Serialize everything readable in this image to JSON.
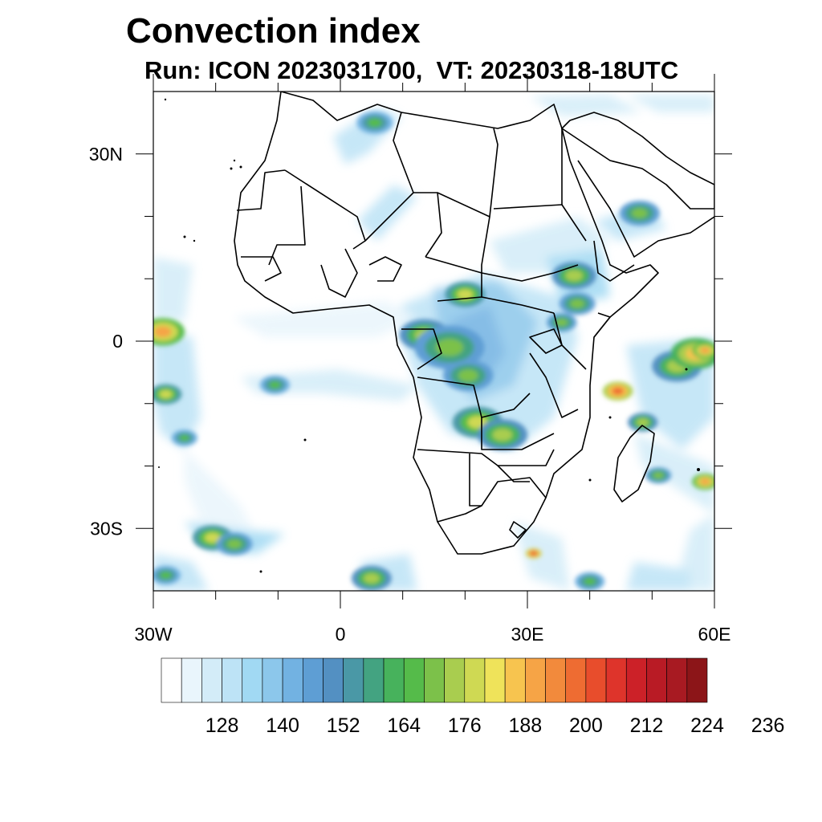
{
  "title": "Convection index",
  "subtitle": "Run: ICON 2023031700,  VT: 20230318-18UTC",
  "map": {
    "lon_range": [
      -30,
      60
    ],
    "lat_range": [
      -40,
      40
    ],
    "x_tick_labels": [
      {
        "lon": -30,
        "label": "30W"
      },
      {
        "lon": 0,
        "label": "0"
      },
      {
        "lon": 30,
        "label": "30E"
      },
      {
        "lon": 60,
        "label": "60E"
      }
    ],
    "y_tick_labels": [
      {
        "lat": 30,
        "label": "30N"
      },
      {
        "lat": 0,
        "label": "0"
      },
      {
        "lat": -30,
        "label": "30S"
      }
    ],
    "minor_lon_ticks": [
      -20,
      -10,
      10,
      20,
      40,
      50
    ],
    "minor_lat_ticks": [
      20,
      10,
      -10,
      -20
    ]
  },
  "colorbar": {
    "colors": [
      "#ffffff",
      "#e9f5fc",
      "#d3ecf8",
      "#bde3f6",
      "#a1d9f3",
      "#8cc7eb",
      "#72b2e2",
      "#5e9ed4",
      "#5390c2",
      "#4a98a6",
      "#43a381",
      "#47b25c",
      "#55bb4a",
      "#7cc14a",
      "#a9cd4f",
      "#cfd953",
      "#efe35a",
      "#f7c44f",
      "#f6a446",
      "#f28a3c",
      "#ee6c32",
      "#e84d2c",
      "#de342b",
      "#cc2128",
      "#b91b25",
      "#a81a22",
      "#8c1518"
    ],
    "labels": [
      "128",
      "140",
      "152",
      "164",
      "176",
      "188",
      "200",
      "212",
      "224",
      "236"
    ]
  },
  "convection_blobs": [
    {
      "lon": -28.5,
      "lat": 1.5,
      "r": 2.2,
      "level": 18
    },
    {
      "lon": -28.0,
      "lat": -8.5,
      "r": 1.6,
      "level": 15
    },
    {
      "lon": -20.5,
      "lat": -31.5,
      "r": 2.0,
      "level": 15
    },
    {
      "lon": -17.0,
      "lat": -32.5,
      "r": 1.8,
      "level": 13
    },
    {
      "lon": -10.5,
      "lat": -7.0,
      "r": 1.5,
      "level": 12
    },
    {
      "lon": -25.0,
      "lat": -15.5,
      "r": 1.3,
      "level": 12
    },
    {
      "lon": 5.0,
      "lat": -38.0,
      "r": 2.0,
      "level": 14
    },
    {
      "lon": 13.5,
      "lat": 1.0,
      "r": 2.5,
      "level": 14
    },
    {
      "lon": 17.5,
      "lat": -1.0,
      "r": 3.5,
      "level": 13
    },
    {
      "lon": 20.0,
      "lat": 7.5,
      "r": 2.0,
      "level": 15
    },
    {
      "lon": 20.5,
      "lat": -5.5,
      "r": 2.5,
      "level": 13
    },
    {
      "lon": 22.0,
      "lat": -13.0,
      "r": 2.5,
      "level": 15
    },
    {
      "lon": 26.0,
      "lat": -15.0,
      "r": 2.5,
      "level": 14
    },
    {
      "lon": 35.5,
      "lat": 3.0,
      "r": 1.5,
      "level": 13
    },
    {
      "lon": 37.5,
      "lat": 10.5,
      "r": 2.2,
      "level": 14
    },
    {
      "lon": 38.0,
      "lat": 6.0,
      "r": 1.8,
      "level": 13
    },
    {
      "lon": 44.5,
      "lat": -8.0,
      "r": 1.5,
      "level": 20
    },
    {
      "lon": 54.0,
      "lat": -4.0,
      "r": 2.5,
      "level": 14
    },
    {
      "lon": 57.0,
      "lat": -2.0,
      "r": 2.5,
      "level": 17
    },
    {
      "lon": 58.5,
      "lat": -1.5,
      "r": 1.3,
      "level": 18
    },
    {
      "lon": 58.5,
      "lat": -22.5,
      "r": 1.3,
      "level": 18
    },
    {
      "lon": 48.5,
      "lat": -13.0,
      "r": 1.5,
      "level": 14
    },
    {
      "lon": 31.0,
      "lat": -34.0,
      "r": 0.8,
      "level": 21
    },
    {
      "lon": 48.0,
      "lat": 20.5,
      "r": 2.0,
      "level": 13
    },
    {
      "lon": 5.5,
      "lat": 35.0,
      "r": 1.8,
      "level": 12
    },
    {
      "lon": -28.0,
      "lat": -37.5,
      "r": 1.5,
      "level": 12
    },
    {
      "lon": 40.0,
      "lat": -38.5,
      "r": 1.5,
      "level": 12
    },
    {
      "lon": 51.0,
      "lat": -21.5,
      "r": 1.3,
      "level": 13
    }
  ]
}
